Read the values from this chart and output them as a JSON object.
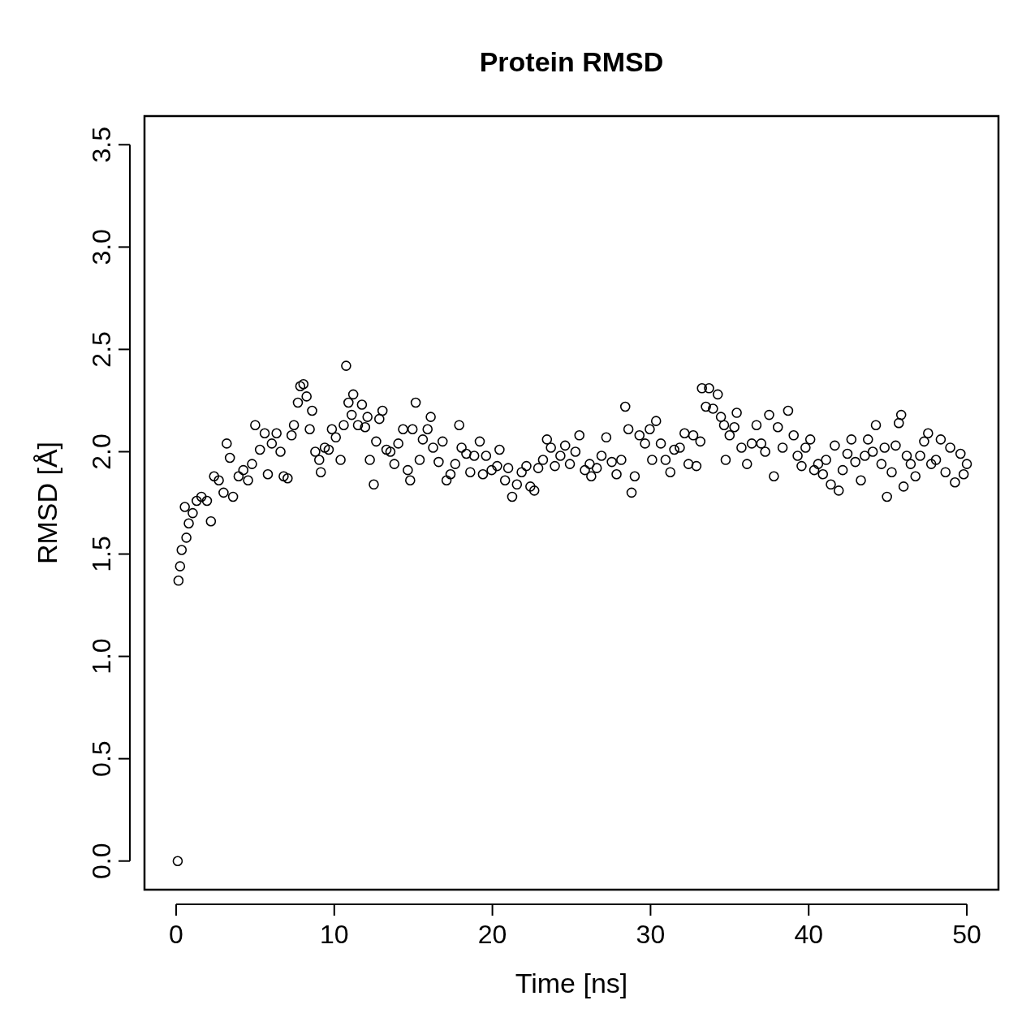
{
  "chart_data": {
    "type": "scatter",
    "title": "Protein RMSD",
    "xlabel": "Time [ns]",
    "ylabel": "RMSD [Å]",
    "marker": "circle",
    "grid": false,
    "xlim": [
      -2,
      52
    ],
    "ylim": [
      -0.14,
      3.64
    ],
    "xticks": [
      0,
      10,
      20,
      30,
      40,
      50
    ],
    "yticks": [
      {
        "value": 0,
        "label": "0.0"
      },
      0.5,
      {
        "value": 1,
        "label": "1.0"
      },
      1.5,
      {
        "value": 2,
        "label": "2.0"
      },
      2.5,
      {
        "value": 3,
        "label": "3.0"
      },
      3.5
    ],
    "series": [
      {
        "color": "#000000",
        "x": [
          0.1,
          0.15,
          0.25,
          0.35,
          0.55,
          0.65,
          0.8,
          1.05,
          1.3,
          1.6,
          1.95,
          2.2,
          2.4,
          2.7,
          3.0,
          3.2,
          3.4,
          3.6,
          3.95,
          4.25,
          4.55,
          4.8,
          5.0,
          5.3,
          5.6,
          5.8,
          6.05,
          6.35,
          6.6,
          6.8,
          7.05,
          7.3,
          7.45,
          7.7,
          7.85,
          8.05,
          8.25,
          8.45,
          8.6,
          8.8,
          9.05,
          9.15,
          9.4,
          9.65,
          9.85,
          10.1,
          10.4,
          10.6,
          10.75,
          10.9,
          11.1,
          11.2,
          11.5,
          11.75,
          11.95,
          12.1,
          12.25,
          12.5,
          12.65,
          12.85,
          13.05,
          13.3,
          13.55,
          13.8,
          14.05,
          14.35,
          14.65,
          14.8,
          14.95,
          15.15,
          15.4,
          15.6,
          15.9,
          16.1,
          16.25,
          16.6,
          16.85,
          17.1,
          17.35,
          17.65,
          17.9,
          18.05,
          18.35,
          18.6,
          18.85,
          19.2,
          19.4,
          19.6,
          19.95,
          20.3,
          20.45,
          20.8,
          21.0,
          21.25,
          21.55,
          21.85,
          22.15,
          22.4,
          22.65,
          22.9,
          23.2,
          23.45,
          23.7,
          23.95,
          24.3,
          24.6,
          24.9,
          25.25,
          25.5,
          25.85,
          26.15,
          26.25,
          26.6,
          26.9,
          27.2,
          27.55,
          27.85,
          28.15,
          28.4,
          28.6,
          28.8,
          29.0,
          29.3,
          29.65,
          29.95,
          30.1,
          30.35,
          30.65,
          30.95,
          31.25,
          31.5,
          31.85,
          32.15,
          32.4,
          32.7,
          32.9,
          33.15,
          33.25,
          33.5,
          33.7,
          33.95,
          34.25,
          34.45,
          34.65,
          34.75,
          35.0,
          35.3,
          35.45,
          35.75,
          36.1,
          36.4,
          36.7,
          37.0,
          37.25,
          37.5,
          37.8,
          38.05,
          38.35,
          38.7,
          39.05,
          39.3,
          39.55,
          39.8,
          40.1,
          40.35,
          40.6,
          40.9,
          41.1,
          41.4,
          41.65,
          41.9,
          42.15,
          42.45,
          42.7,
          42.95,
          43.3,
          43.55,
          43.75,
          44.05,
          44.25,
          44.6,
          44.8,
          44.95,
          45.25,
          45.5,
          45.7,
          45.85,
          46.0,
          46.2,
          46.45,
          46.75,
          47.05,
          47.3,
          47.55,
          47.75,
          48.05,
          48.35,
          48.65,
          48.95,
          49.25,
          49.6,
          49.8,
          50.0
        ],
        "values": [
          0.0,
          1.37,
          1.44,
          1.52,
          1.73,
          1.58,
          1.65,
          1.7,
          1.76,
          1.78,
          1.76,
          1.66,
          1.88,
          1.86,
          1.8,
          2.04,
          1.97,
          1.78,
          1.88,
          1.91,
          1.86,
          1.94,
          2.13,
          2.01,
          2.09,
          1.89,
          2.04,
          2.09,
          2.0,
          1.88,
          1.87,
          2.08,
          2.13,
          2.24,
          2.32,
          2.33,
          2.27,
          2.11,
          2.2,
          2.0,
          1.96,
          1.9,
          2.02,
          2.01,
          2.11,
          2.07,
          1.96,
          2.13,
          2.42,
          2.24,
          2.18,
          2.28,
          2.13,
          2.23,
          2.12,
          2.17,
          1.96,
          1.84,
          2.05,
          2.16,
          2.2,
          2.01,
          2.0,
          1.94,
          2.04,
          2.11,
          1.91,
          1.86,
          2.11,
          2.24,
          1.96,
          2.06,
          2.11,
          2.17,
          2.02,
          1.95,
          2.05,
          1.86,
          1.89,
          1.94,
          2.13,
          2.02,
          1.99,
          1.9,
          1.98,
          2.05,
          1.89,
          1.98,
          1.91,
          1.93,
          2.01,
          1.86,
          1.92,
          1.78,
          1.84,
          1.9,
          1.93,
          1.83,
          1.81,
          1.92,
          1.96,
          2.06,
          2.02,
          1.93,
          1.98,
          2.03,
          1.94,
          2.0,
          2.08,
          1.91,
          1.94,
          1.88,
          1.92,
          1.98,
          2.07,
          1.95,
          1.89,
          1.96,
          2.22,
          2.11,
          1.8,
          1.88,
          2.08,
          2.04,
          2.11,
          1.96,
          2.15,
          2.04,
          1.96,
          1.9,
          2.01,
          2.02,
          2.09,
          1.94,
          2.08,
          1.93,
          2.05,
          2.31,
          2.22,
          2.31,
          2.21,
          2.28,
          2.17,
          2.13,
          1.96,
          2.08,
          2.12,
          2.19,
          2.02,
          1.94,
          2.04,
          2.13,
          2.04,
          2.0,
          2.18,
          1.88,
          2.12,
          2.02,
          2.2,
          2.08,
          1.98,
          1.93,
          2.02,
          2.06,
          1.91,
          1.94,
          1.89,
          1.96,
          1.84,
          2.03,
          1.81,
          1.91,
          1.99,
          2.06,
          1.95,
          1.86,
          1.98,
          2.06,
          2.0,
          2.13,
          1.94,
          2.02,
          1.78,
          1.9,
          2.03,
          2.14,
          2.18,
          1.83,
          1.98,
          1.94,
          1.88,
          1.98,
          2.05,
          2.09,
          1.94,
          1.96,
          2.06,
          1.9,
          2.02,
          1.85,
          1.99,
          1.89,
          1.94
        ]
      }
    ]
  }
}
